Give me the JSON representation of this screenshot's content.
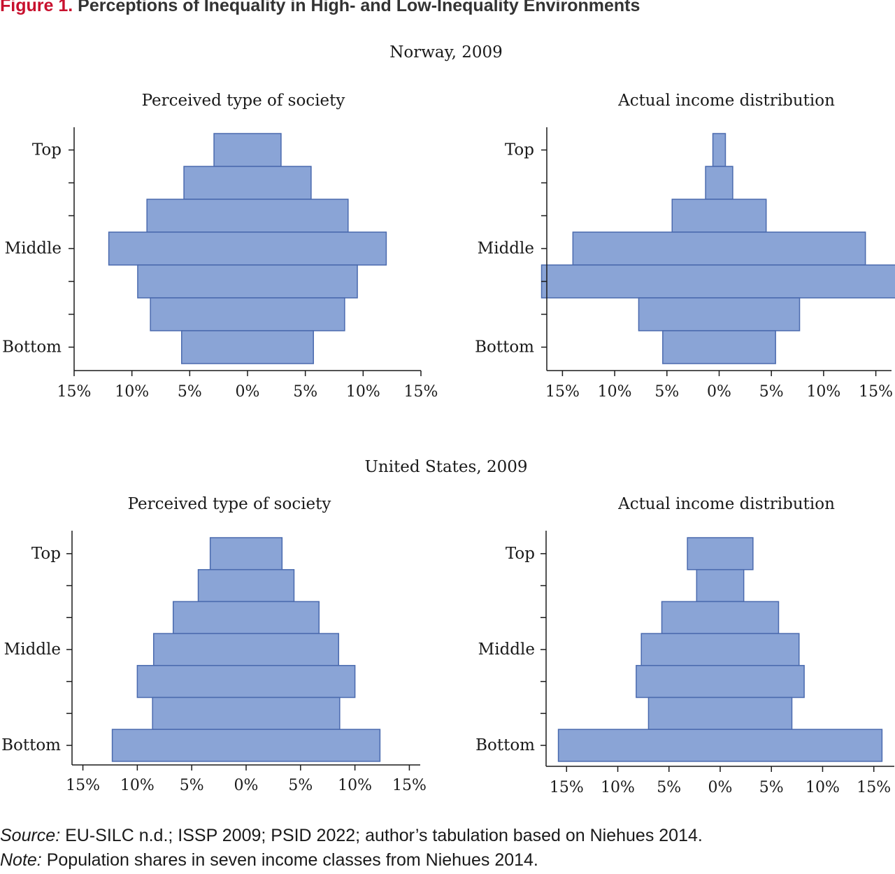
{
  "figure": {
    "label": "Figure 1.",
    "title": "Perceptions of Inequality in High- and Low-Inequality Environments"
  },
  "footer": {
    "source_label": "Source:",
    "source_text": "EU-SILC n.d.; ISSP 2009; PSID 2022; author’s tabulation based on Niehues 2014.",
    "note_label": "Note:",
    "note_text": "Population shares in seven income classes from Niehues 2014."
  },
  "colors": {
    "bar_fill": "#8aa4d6",
    "bar_stroke": "#4a6aae",
    "axis": "#1a1a1a"
  },
  "panels": [
    {
      "heading": "Norway, 2009"
    },
    {
      "heading": "United States, 2009"
    }
  ],
  "chart_data": [
    {
      "type": "bar",
      "orientation": "horizontal-mirrored",
      "title": "Perceived type of society",
      "categories": [
        "Top",
        "",
        "",
        "Middle",
        "",
        "",
        "Bottom"
      ],
      "values": [
        2.9,
        5.5,
        8.7,
        12.0,
        9.5,
        8.4,
        5.7
      ],
      "x_tick_labels": [
        "15%",
        "10%",
        "5%",
        "0%",
        "5%",
        "10%",
        "15%"
      ],
      "xlim": [
        -15,
        15
      ]
    },
    {
      "type": "bar",
      "orientation": "horizontal-mirrored",
      "title": "Actual income distribution",
      "categories": [
        "Top",
        "",
        "",
        "Middle",
        "",
        "",
        "Bottom"
      ],
      "values": [
        0.6,
        1.3,
        4.5,
        14.0,
        17.0,
        7.7,
        5.4
      ],
      "x_tick_labels": [
        "15%",
        "10%",
        "5%",
        "0%",
        "5%",
        "10%",
        "15%"
      ],
      "xlim": [
        -16.5,
        16.5
      ]
    },
    {
      "type": "bar",
      "orientation": "horizontal-mirrored",
      "title": "Perceived type of society",
      "categories": [
        "Top",
        "",
        "",
        "Middle",
        "",
        "",
        "Bottom"
      ],
      "values": [
        3.3,
        4.4,
        6.7,
        8.5,
        10.0,
        8.6,
        12.3
      ],
      "x_tick_labels": [
        "15%",
        "10%",
        "5%",
        "0%",
        "5%",
        "10%",
        "15%"
      ],
      "xlim": [
        -16,
        16
      ]
    },
    {
      "type": "bar",
      "orientation": "horizontal-mirrored",
      "title": "Actual income distribution",
      "categories": [
        "Top",
        "",
        "",
        "Middle",
        "",
        "",
        "Bottom"
      ],
      "values": [
        3.2,
        2.3,
        5.7,
        7.7,
        8.2,
        7.0,
        15.8
      ],
      "x_tick_labels": [
        "15%",
        "10%",
        "5%",
        "0%",
        "5%",
        "10%",
        "15%"
      ],
      "xlim": [
        -17,
        17
      ]
    }
  ]
}
